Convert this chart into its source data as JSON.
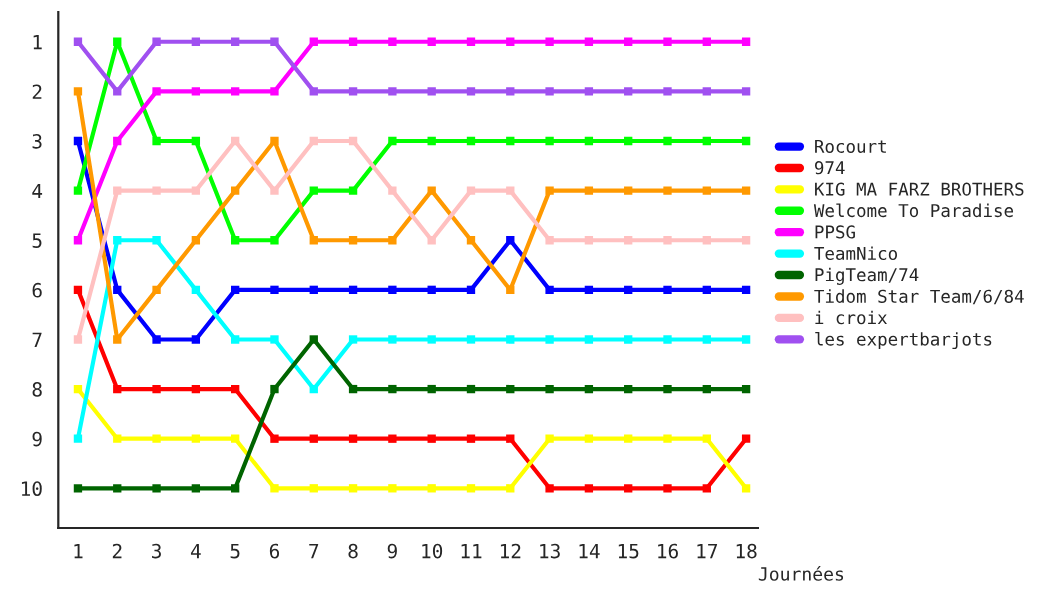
{
  "chart_data": {
    "type": "line",
    "xlabel": "Journées",
    "x": [
      1,
      2,
      3,
      4,
      5,
      6,
      7,
      8,
      9,
      10,
      11,
      12,
      13,
      14,
      15,
      16,
      17,
      18
    ],
    "series": [
      {
        "name": "Rocourt",
        "color": "#0000ff",
        "values": [
          3,
          6,
          7,
          7,
          6,
          6,
          6,
          6,
          6,
          6,
          6,
          5,
          6,
          6,
          6,
          6,
          6,
          6
        ]
      },
      {
        "name": "974",
        "color": "#ff0000",
        "values": [
          6,
          8,
          8,
          8,
          8,
          9,
          9,
          9,
          9,
          9,
          9,
          9,
          10,
          10,
          10,
          10,
          10,
          9
        ]
      },
      {
        "name": "KIG MA FARZ BROTHERS",
        "color": "#ffff00",
        "values": [
          8,
          9,
          9,
          9,
          9,
          10,
          10,
          10,
          10,
          10,
          10,
          10,
          9,
          9,
          9,
          9,
          9,
          10
        ]
      },
      {
        "name": "Welcome To Paradise",
        "color": "#00ff00",
        "values": [
          4,
          1,
          3,
          3,
          5,
          5,
          4,
          4,
          3,
          3,
          3,
          3,
          3,
          3,
          3,
          3,
          3,
          3
        ]
      },
      {
        "name": "PPSG",
        "color": "#ff00ff",
        "values": [
          5,
          3,
          2,
          2,
          2,
          2,
          1,
          1,
          1,
          1,
          1,
          1,
          1,
          1,
          1,
          1,
          1,
          1
        ]
      },
      {
        "name": "TeamNico",
        "color": "#00ffff",
        "values": [
          9,
          5,
          5,
          6,
          7,
          7,
          8,
          7,
          7,
          7,
          7,
          7,
          7,
          7,
          7,
          7,
          7,
          7
        ]
      },
      {
        "name": "PigTeam/74",
        "color": "#006400",
        "values": [
          10,
          10,
          10,
          10,
          10,
          8,
          7,
          8,
          8,
          8,
          8,
          8,
          8,
          8,
          8,
          8,
          8,
          8
        ]
      },
      {
        "name": "Tidom Star Team/6/84",
        "color": "#ff9900",
        "values": [
          2,
          7,
          6,
          5,
          4,
          3,
          5,
          5,
          5,
          4,
          5,
          6,
          4,
          4,
          4,
          4,
          4,
          4
        ]
      },
      {
        "name": "i croix",
        "color": "#ffc0c0",
        "values": [
          7,
          4,
          4,
          4,
          3,
          4,
          3,
          3,
          4,
          5,
          4,
          4,
          5,
          5,
          5,
          5,
          5,
          5
        ]
      },
      {
        "name": "les expertbarjots",
        "color": "#a050f0",
        "values": [
          1,
          2,
          1,
          1,
          1,
          1,
          2,
          2,
          2,
          2,
          2,
          2,
          2,
          2,
          2,
          2,
          2,
          2
        ]
      }
    ],
    "xlim": [
      0.5,
      18.3
    ],
    "ylim": [
      10.8,
      0.4
    ],
    "xticks": [
      1,
      2,
      3,
      4,
      5,
      6,
      7,
      8,
      9,
      10,
      11,
      12,
      13,
      14,
      15,
      16,
      17,
      18
    ],
    "yticks": [
      1,
      2,
      3,
      4,
      5,
      6,
      7,
      8,
      9,
      10
    ],
    "grid": false,
    "legend": "right",
    "marker": "square",
    "line_style": "solid"
  }
}
